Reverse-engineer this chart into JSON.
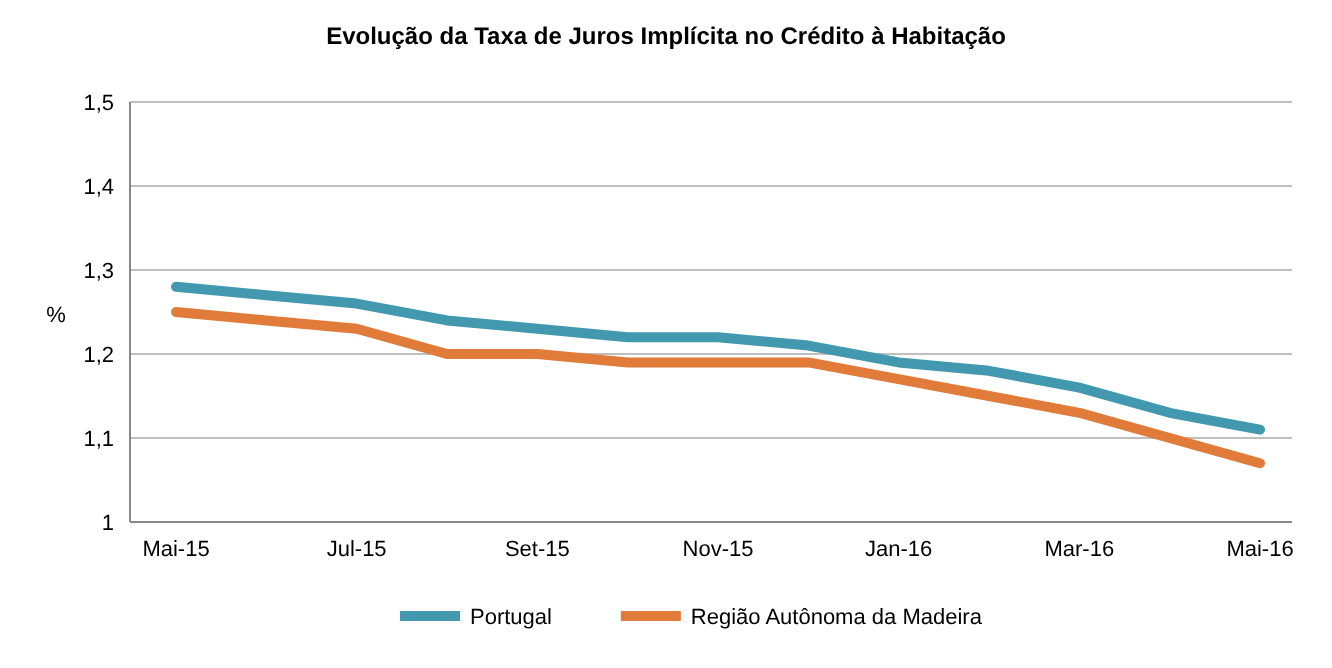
{
  "chart_data": {
    "type": "line",
    "title": "Evolução da Taxa de Juros Implícita no Crédito à Habitação",
    "ylabel": "%",
    "categories": [
      "Mai-15",
      null,
      "Jul-15",
      null,
      "Set-15",
      null,
      "Nov-15",
      null,
      "Jan-16",
      null,
      "Mar-16",
      null,
      "Mai-16"
    ],
    "series": [
      {
        "name": "Portugal",
        "color": "#4198af",
        "values": [
          1.28,
          1.27,
          1.26,
          1.24,
          1.23,
          1.22,
          1.22,
          1.21,
          1.19,
          1.18,
          1.16,
          1.13,
          1.11
        ]
      },
      {
        "name": "Região Autônoma da Madeira",
        "color": "#e07b39",
        "values": [
          1.25,
          1.24,
          1.23,
          1.2,
          1.2,
          1.19,
          1.19,
          1.19,
          1.17,
          1.15,
          1.13,
          1.1,
          1.07
        ]
      }
    ],
    "ylim": [
      1,
      1.5
    ],
    "yticks": [
      1,
      {
        "value": 1.1,
        "label": "1,1"
      },
      {
        "value": 1.2,
        "label": "1,2"
      },
      {
        "value": 1.3,
        "label": "1,3"
      },
      {
        "value": 1.4,
        "label": "1,4"
      },
      {
        "value": 1.5,
        "label": "1,5"
      }
    ],
    "grid": "y",
    "legend": "bottom",
    "marker": "none",
    "line_style": "solid"
  }
}
